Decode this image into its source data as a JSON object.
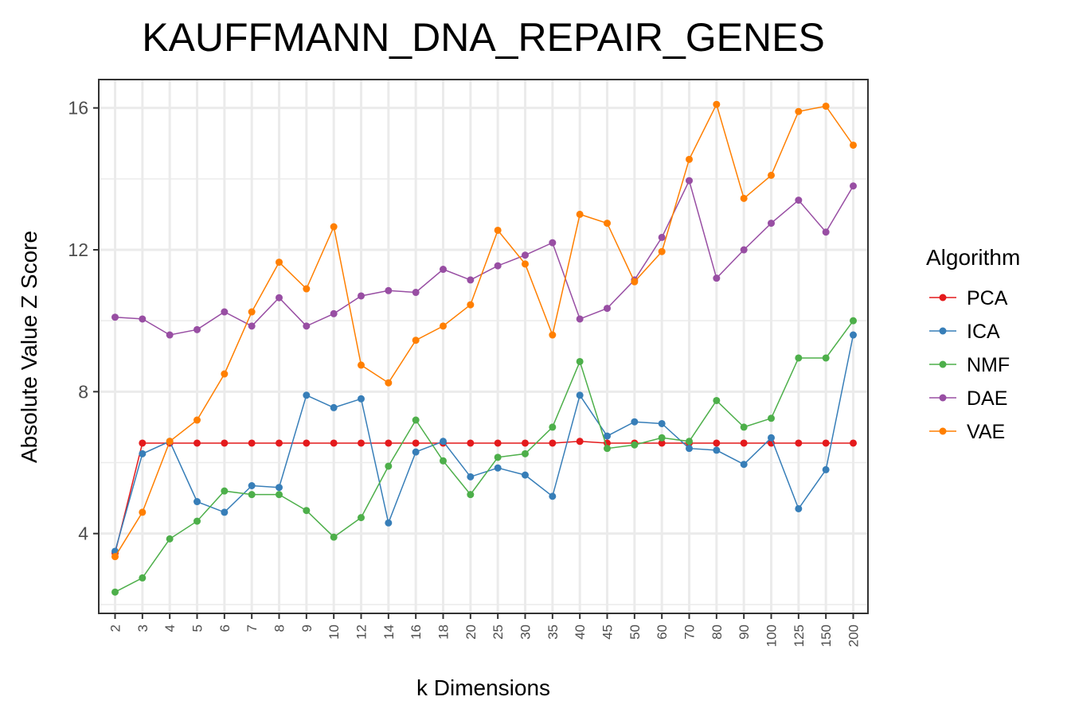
{
  "chart_data": {
    "type": "line",
    "title": "KAUFFMANN_DNA_REPAIR_GENES",
    "xlabel": "k Dimensions",
    "ylabel": "Absolute Value Z Score",
    "categories": [
      "2",
      "3",
      "4",
      "5",
      "6",
      "7",
      "8",
      "9",
      "10",
      "12",
      "14",
      "16",
      "18",
      "20",
      "25",
      "30",
      "35",
      "40",
      "45",
      "50",
      "60",
      "70",
      "80",
      "90",
      "100",
      "125",
      "150",
      "200"
    ],
    "ylim": [
      1.75,
      16.8
    ],
    "yticks": [
      4,
      8,
      12,
      16
    ],
    "grid": true,
    "legend": {
      "title": "Algorithm",
      "placement": "right"
    },
    "series": [
      {
        "name": "PCA",
        "color": "#E41A1C",
        "values": [
          3.45,
          6.55,
          6.55,
          6.55,
          6.55,
          6.55,
          6.55,
          6.55,
          6.55,
          6.55,
          6.55,
          6.55,
          6.55,
          6.55,
          6.55,
          6.55,
          6.55,
          6.6,
          6.55,
          6.55,
          6.55,
          6.55,
          6.55,
          6.55,
          6.55,
          6.55,
          6.55,
          6.55
        ]
      },
      {
        "name": "ICA",
        "color": "#377EB8",
        "values": [
          3.5,
          6.25,
          6.6,
          4.9,
          4.6,
          5.35,
          5.3,
          7.9,
          7.55,
          7.8,
          4.3,
          6.3,
          6.6,
          5.6,
          5.85,
          5.65,
          5.05,
          7.9,
          6.75,
          7.15,
          7.1,
          6.4,
          6.35,
          5.95,
          6.7,
          4.7,
          5.8,
          9.6
        ]
      },
      {
        "name": "NMF",
        "color": "#4DAF4A",
        "values": [
          2.35,
          2.75,
          3.85,
          4.35,
          5.2,
          5.1,
          5.1,
          4.65,
          3.9,
          4.45,
          5.9,
          7.2,
          6.05,
          5.1,
          6.15,
          6.25,
          7.0,
          8.85,
          6.4,
          6.5,
          6.7,
          6.6,
          7.75,
          7.0,
          7.25,
          8.95,
          8.95,
          10.0
        ]
      },
      {
        "name": "DAE",
        "color": "#984EA3",
        "values": [
          10.1,
          10.05,
          9.6,
          9.75,
          10.25,
          9.85,
          10.65,
          9.85,
          10.2,
          10.7,
          10.85,
          10.8,
          11.45,
          11.15,
          11.55,
          11.85,
          12.2,
          10.05,
          10.35,
          11.15,
          12.35,
          13.95,
          11.2,
          12.0,
          12.75,
          13.4,
          12.5,
          13.8
        ]
      },
      {
        "name": "VAE",
        "color": "#FF7F00",
        "values": [
          3.35,
          4.6,
          6.6,
          7.2,
          8.5,
          10.25,
          11.65,
          10.9,
          12.65,
          8.75,
          8.25,
          9.45,
          9.85,
          10.45,
          12.55,
          11.6,
          9.6,
          13.0,
          12.75,
          11.1,
          11.95,
          14.55,
          16.1,
          13.45,
          14.1,
          15.9,
          16.05,
          14.95
        ]
      }
    ]
  }
}
